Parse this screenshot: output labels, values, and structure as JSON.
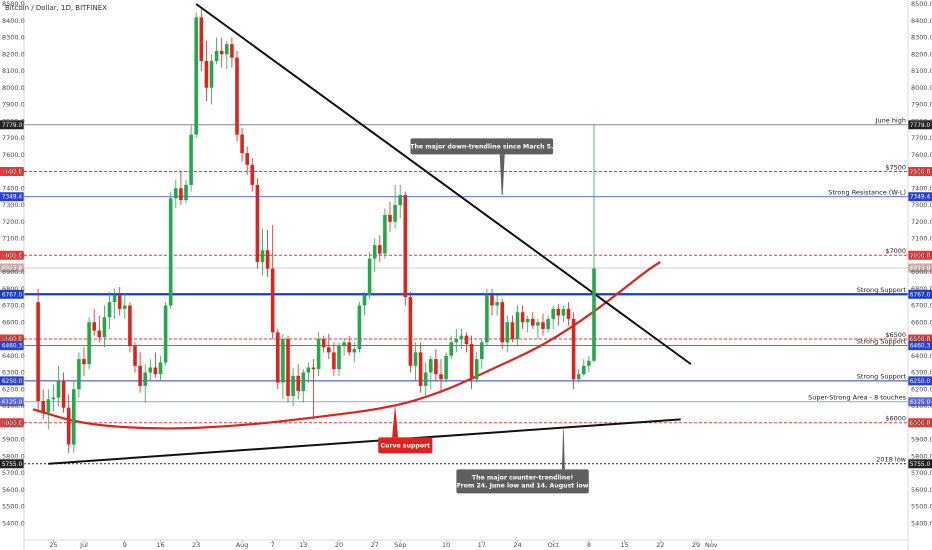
{
  "chart_data": {
    "type": "candlestick",
    "title": "Bitcoin / Dollar, 1D, BITFINEX",
    "ylim": [
      5300,
      8500
    ],
    "y_ticks": [
      5400,
      5500,
      5600,
      5700,
      5800,
      5900,
      6000,
      6100,
      6200,
      6300,
      6400,
      6500,
      6600,
      6700,
      6800,
      6900,
      7000,
      7100,
      7200,
      7300,
      7400,
      7500,
      7600,
      7700,
      7800,
      7900,
      8000,
      8100,
      8200,
      8300,
      8400,
      8500
    ],
    "x_ticks": [
      {
        "label": "25",
        "day": -6
      },
      {
        "label": "Jul",
        "day": 0
      },
      {
        "label": "9",
        "day": 8
      },
      {
        "label": "16",
        "day": 15
      },
      {
        "label": "23",
        "day": 22
      },
      {
        "label": "Aug",
        "day": 31
      },
      {
        "label": "7",
        "day": 37
      },
      {
        "label": "13",
        "day": 43
      },
      {
        "label": "20",
        "day": 50
      },
      {
        "label": "27",
        "day": 57
      },
      {
        "label": "Sep",
        "day": 62
      },
      {
        "label": "10",
        "day": 71
      },
      {
        "label": "17",
        "day": 78
      },
      {
        "label": "24",
        "day": 85
      },
      {
        "label": "Oct",
        "day": 92
      },
      {
        "label": "8",
        "day": 99
      },
      {
        "label": "15",
        "day": 106
      },
      {
        "label": "22",
        "day": 113
      },
      {
        "label": "29",
        "day": 120
      },
      {
        "label": "Nov",
        "day": 123
      }
    ],
    "candles": [
      {
        "d": -9,
        "o": 6720,
        "h": 6800,
        "l": 6060,
        "c": 6130
      },
      {
        "d": -8,
        "o": 6130,
        "h": 6200,
        "l": 6020,
        "c": 6060
      },
      {
        "d": -7,
        "o": 6060,
        "h": 6200,
        "l": 5960,
        "c": 6140
      },
      {
        "d": -6,
        "o": 6140,
        "h": 6230,
        "l": 6070,
        "c": 6150
      },
      {
        "d": -5,
        "o": 6150,
        "h": 6340,
        "l": 6100,
        "c": 6250
      },
      {
        "d": -4,
        "o": 6250,
        "h": 6300,
        "l": 6060,
        "c": 6090
      },
      {
        "d": -3,
        "o": 6090,
        "h": 6170,
        "l": 5820,
        "c": 5870
      },
      {
        "d": -2,
        "o": 5870,
        "h": 6250,
        "l": 5820,
        "c": 6200
      },
      {
        "d": -1,
        "o": 6200,
        "h": 6420,
        "l": 6150,
        "c": 6380
      },
      {
        "d": 0,
        "o": 6380,
        "h": 6450,
        "l": 6280,
        "c": 6350
      },
      {
        "d": 1,
        "o": 6350,
        "h": 6630,
        "l": 6320,
        "c": 6600
      },
      {
        "d": 2,
        "o": 6600,
        "h": 6680,
        "l": 6520,
        "c": 6550
      },
      {
        "d": 3,
        "o": 6550,
        "h": 6640,
        "l": 6480,
        "c": 6510
      },
      {
        "d": 4,
        "o": 6510,
        "h": 6700,
        "l": 6450,
        "c": 6630
      },
      {
        "d": 5,
        "o": 6630,
        "h": 6780,
        "l": 6560,
        "c": 6720
      },
      {
        "d": 6,
        "o": 6720,
        "h": 6800,
        "l": 6620,
        "c": 6760
      },
      {
        "d": 7,
        "o": 6760,
        "h": 6810,
        "l": 6640,
        "c": 6680
      },
      {
        "d": 8,
        "o": 6680,
        "h": 6770,
        "l": 6620,
        "c": 6700
      },
      {
        "d": 9,
        "o": 6700,
        "h": 6720,
        "l": 6420,
        "c": 6460
      },
      {
        "d": 10,
        "o": 6460,
        "h": 6480,
        "l": 6300,
        "c": 6340
      },
      {
        "d": 11,
        "o": 6340,
        "h": 6420,
        "l": 6180,
        "c": 6220
      },
      {
        "d": 12,
        "o": 6220,
        "h": 6350,
        "l": 6120,
        "c": 6300
      },
      {
        "d": 13,
        "o": 6300,
        "h": 6380,
        "l": 6250,
        "c": 6330
      },
      {
        "d": 14,
        "o": 6330,
        "h": 6420,
        "l": 6270,
        "c": 6290
      },
      {
        "d": 15,
        "o": 6290,
        "h": 6400,
        "l": 6250,
        "c": 6360
      },
      {
        "d": 16,
        "o": 6360,
        "h": 6720,
        "l": 6340,
        "c": 6700
      },
      {
        "d": 17,
        "o": 6700,
        "h": 7380,
        "l": 6680,
        "c": 7340
      },
      {
        "d": 18,
        "o": 7340,
        "h": 7450,
        "l": 7280,
        "c": 7400
      },
      {
        "d": 19,
        "o": 7400,
        "h": 7500,
        "l": 7300,
        "c": 7330
      },
      {
        "d": 20,
        "o": 7330,
        "h": 7450,
        "l": 7310,
        "c": 7420
      },
      {
        "d": 21,
        "o": 7420,
        "h": 7780,
        "l": 7380,
        "c": 7720
      },
      {
        "d": 22,
        "o": 7720,
        "h": 8450,
        "l": 7700,
        "c": 8420
      },
      {
        "d": 23,
        "o": 8420,
        "h": 8470,
        "l": 8100,
        "c": 8160
      },
      {
        "d": 24,
        "o": 8160,
        "h": 8280,
        "l": 7920,
        "c": 8000
      },
      {
        "d": 25,
        "o": 8000,
        "h": 8200,
        "l": 7900,
        "c": 8160
      },
      {
        "d": 26,
        "o": 8160,
        "h": 8300,
        "l": 8140,
        "c": 8220
      },
      {
        "d": 27,
        "o": 8220,
        "h": 8300,
        "l": 8120,
        "c": 8200
      },
      {
        "d": 28,
        "o": 8200,
        "h": 8280,
        "l": 8110,
        "c": 8260
      },
      {
        "d": 29,
        "o": 8260,
        "h": 8300,
        "l": 8120,
        "c": 8180
      },
      {
        "d": 30,
        "o": 8180,
        "h": 8220,
        "l": 7680,
        "c": 7720
      },
      {
        "d": 31,
        "o": 7720,
        "h": 7760,
        "l": 7560,
        "c": 7610
      },
      {
        "d": 32,
        "o": 7610,
        "h": 7650,
        "l": 7480,
        "c": 7540
      },
      {
        "d": 33,
        "o": 7540,
        "h": 7580,
        "l": 7380,
        "c": 7420
      },
      {
        "d": 34,
        "o": 7420,
        "h": 7460,
        "l": 6920,
        "c": 6960
      },
      {
        "d": 35,
        "o": 6960,
        "h": 7160,
        "l": 6880,
        "c": 7030
      },
      {
        "d": 36,
        "o": 7030,
        "h": 7150,
        "l": 6870,
        "c": 6920
      },
      {
        "d": 37,
        "o": 6920,
        "h": 7180,
        "l": 6500,
        "c": 6540
      },
      {
        "d": 38,
        "o": 6540,
        "h": 6560,
        "l": 6200,
        "c": 6240
      },
      {
        "d": 39,
        "o": 6240,
        "h": 6530,
        "l": 6140,
        "c": 6500
      },
      {
        "d": 40,
        "o": 6500,
        "h": 6520,
        "l": 6120,
        "c": 6160
      },
      {
        "d": 41,
        "o": 6160,
        "h": 6330,
        "l": 6100,
        "c": 6280
      },
      {
        "d": 42,
        "o": 6280,
        "h": 6350,
        "l": 6140,
        "c": 6190
      },
      {
        "d": 43,
        "o": 6190,
        "h": 6320,
        "l": 6120,
        "c": 6300
      },
      {
        "d": 44,
        "o": 6300,
        "h": 6360,
        "l": 6240,
        "c": 6330
      },
      {
        "d": 45,
        "o": 6330,
        "h": 6380,
        "l": 6020,
        "c": 6320
      },
      {
        "d": 46,
        "o": 6320,
        "h": 6540,
        "l": 6280,
        "c": 6500
      },
      {
        "d": 47,
        "o": 6500,
        "h": 6520,
        "l": 6420,
        "c": 6450
      },
      {
        "d": 48,
        "o": 6450,
        "h": 6530,
        "l": 6380,
        "c": 6420
      },
      {
        "d": 49,
        "o": 6420,
        "h": 6480,
        "l": 6280,
        "c": 6320
      },
      {
        "d": 50,
        "o": 6320,
        "h": 6480,
        "l": 6280,
        "c": 6460
      },
      {
        "d": 51,
        "o": 6460,
        "h": 6500,
        "l": 6400,
        "c": 6480
      },
      {
        "d": 52,
        "o": 6480,
        "h": 6520,
        "l": 6400,
        "c": 6420
      },
      {
        "d": 53,
        "o": 6420,
        "h": 6480,
        "l": 6360,
        "c": 6440
      },
      {
        "d": 54,
        "o": 6440,
        "h": 6720,
        "l": 6420,
        "c": 6700
      },
      {
        "d": 55,
        "o": 6700,
        "h": 6780,
        "l": 6640,
        "c": 6760
      },
      {
        "d": 56,
        "o": 6760,
        "h": 7020,
        "l": 6740,
        "c": 6980
      },
      {
        "d": 57,
        "o": 6980,
        "h": 7100,
        "l": 6900,
        "c": 7060
      },
      {
        "d": 58,
        "o": 7060,
        "h": 7120,
        "l": 6960,
        "c": 7010
      },
      {
        "d": 59,
        "o": 7010,
        "h": 7280,
        "l": 6980,
        "c": 7240
      },
      {
        "d": 60,
        "o": 7240,
        "h": 7320,
        "l": 7140,
        "c": 7200
      },
      {
        "d": 61,
        "o": 7200,
        "h": 7420,
        "l": 7160,
        "c": 7300
      },
      {
        "d": 62,
        "o": 7300,
        "h": 7420,
        "l": 7220,
        "c": 7360
      },
      {
        "d": 63,
        "o": 7360,
        "h": 7380,
        "l": 6700,
        "c": 6750
      },
      {
        "d": 64,
        "o": 6750,
        "h": 6780,
        "l": 6300,
        "c": 6340
      },
      {
        "d": 65,
        "o": 6340,
        "h": 6480,
        "l": 6250,
        "c": 6420
      },
      {
        "d": 66,
        "o": 6420,
        "h": 6480,
        "l": 6180,
        "c": 6220
      },
      {
        "d": 67,
        "o": 6220,
        "h": 6360,
        "l": 6150,
        "c": 6300
      },
      {
        "d": 68,
        "o": 6300,
        "h": 6400,
        "l": 6200,
        "c": 6380
      },
      {
        "d": 69,
        "o": 6380,
        "h": 6440,
        "l": 6250,
        "c": 6290
      },
      {
        "d": 70,
        "o": 6290,
        "h": 6380,
        "l": 6180,
        "c": 6260
      },
      {
        "d": 71,
        "o": 6260,
        "h": 6420,
        "l": 6240,
        "c": 6400
      },
      {
        "d": 72,
        "o": 6400,
        "h": 6520,
        "l": 6380,
        "c": 6480
      },
      {
        "d": 73,
        "o": 6480,
        "h": 6560,
        "l": 6420,
        "c": 6500
      },
      {
        "d": 74,
        "o": 6500,
        "h": 6560,
        "l": 6440,
        "c": 6520
      },
      {
        "d": 75,
        "o": 6520,
        "h": 6540,
        "l": 6420,
        "c": 6470
      },
      {
        "d": 76,
        "o": 6470,
        "h": 6520,
        "l": 6200,
        "c": 6260
      },
      {
        "d": 77,
        "o": 6260,
        "h": 6420,
        "l": 6240,
        "c": 6380
      },
      {
        "d": 78,
        "o": 6380,
        "h": 6500,
        "l": 6320,
        "c": 6480
      },
      {
        "d": 79,
        "o": 6480,
        "h": 6800,
        "l": 6460,
        "c": 6760
      },
      {
        "d": 80,
        "o": 6760,
        "h": 6800,
        "l": 6640,
        "c": 6700
      },
      {
        "d": 81,
        "o": 6700,
        "h": 6760,
        "l": 6640,
        "c": 6720
      },
      {
        "d": 82,
        "o": 6720,
        "h": 6740,
        "l": 6440,
        "c": 6480
      },
      {
        "d": 83,
        "o": 6480,
        "h": 6640,
        "l": 6420,
        "c": 6600
      },
      {
        "d": 84,
        "o": 6600,
        "h": 6640,
        "l": 6480,
        "c": 6500
      },
      {
        "d": 85,
        "o": 6500,
        "h": 6700,
        "l": 6460,
        "c": 6660
      },
      {
        "d": 86,
        "o": 6660,
        "h": 6700,
        "l": 6560,
        "c": 6600
      },
      {
        "d": 87,
        "o": 6600,
        "h": 6640,
        "l": 6540,
        "c": 6620
      },
      {
        "d": 88,
        "o": 6620,
        "h": 6660,
        "l": 6560,
        "c": 6580
      },
      {
        "d": 89,
        "o": 6580,
        "h": 6620,
        "l": 6500,
        "c": 6600
      },
      {
        "d": 90,
        "o": 6600,
        "h": 6650,
        "l": 6520,
        "c": 6560
      },
      {
        "d": 91,
        "o": 6560,
        "h": 6640,
        "l": 6540,
        "c": 6620
      },
      {
        "d": 92,
        "o": 6620,
        "h": 6700,
        "l": 6560,
        "c": 6680
      },
      {
        "d": 93,
        "o": 6680,
        "h": 6710,
        "l": 6580,
        "c": 6640
      },
      {
        "d": 94,
        "o": 6640,
        "h": 6700,
        "l": 6600,
        "c": 6680
      },
      {
        "d": 95,
        "o": 6680,
        "h": 6720,
        "l": 6580,
        "c": 6620
      },
      {
        "d": 96,
        "o": 6620,
        "h": 6660,
        "l": 6200,
        "c": 6260
      },
      {
        "d": 97,
        "o": 6260,
        "h": 6320,
        "l": 6240,
        "c": 6290
      },
      {
        "d": 98,
        "o": 6290,
        "h": 6380,
        "l": 6280,
        "c": 6340
      },
      {
        "d": 99,
        "o": 6340,
        "h": 6400,
        "l": 6300,
        "c": 6370
      },
      {
        "d": 100,
        "o": 6370,
        "h": 7780,
        "l": 6360,
        "c": 6920
      }
    ],
    "levels": [
      {
        "value": 7779,
        "label": "June high",
        "tag": "7779.0",
        "color": "#888888",
        "dash": "",
        "width": 1
      },
      {
        "value": 7500,
        "label": "$7500",
        "tag": "7500.0",
        "color": "#e53935",
        "dash": "3,2",
        "width": 1
      },
      {
        "value": 7349.4,
        "label": "Strong Resistance (W-L)",
        "tag": "7349.4",
        "color": "#2a3fd4",
        "dash": "",
        "width": 0.8
      },
      {
        "value": 7000,
        "label": "$7000",
        "tag": "7000.0",
        "color": "#e53935",
        "dash": "3,2",
        "width": 1
      },
      {
        "value": 6923.8,
        "label": "",
        "tag": "6923.8",
        "color": "#bbbbbb",
        "dash": "",
        "width": 0.8
      },
      {
        "value": 6767,
        "label": "Strong Support",
        "tag": "6767.0",
        "color": "#1a3ad4",
        "dash": "",
        "width": 2.2
      },
      {
        "value": 6500,
        "label": "$6500",
        "tag": "6500.0",
        "color": "#e53935",
        "dash": "3,2",
        "width": 1
      },
      {
        "value": 6460.3,
        "label": "Strong Support",
        "tag": "6460.3",
        "color": "#2a3fd4",
        "dash": "",
        "width": 0.8
      },
      {
        "value": 6250,
        "label": "Strong Support",
        "tag": "6250.0",
        "color": "#2a3fd4",
        "dash": "",
        "width": 1
      },
      {
        "value": 6125,
        "label": "Super-Strong Area - 8 touches",
        "tag": "6125.0",
        "color": "#5a6ad8",
        "dash": "",
        "width": 0.7
      },
      {
        "value": 6000,
        "label": "$6000",
        "tag": "6000.0",
        "color": "#e53935",
        "dash": "3,2",
        "width": 1
      },
      {
        "value": 5755,
        "label": "2018 low",
        "tag": "5755.0",
        "color": "#222222",
        "dash": "2,2",
        "width": 1
      }
    ],
    "trendlines": [
      {
        "name": "The major down-trendline since March 5.",
        "from": [
          22,
          8500
        ],
        "to": [
          119,
          6350
        ]
      },
      {
        "name": "The major counter-trendline",
        "from": [
          -7,
          5755
        ],
        "to": [
          117,
          6020
        ]
      }
    ],
    "curve_support_points": [
      [
        -10,
        6080
      ],
      [
        0,
        5990
      ],
      [
        15,
        5960
      ],
      [
        30,
        5980
      ],
      [
        45,
        6030
      ],
      [
        60,
        6090
      ],
      [
        70,
        6180
      ],
      [
        80,
        6320
      ],
      [
        90,
        6460
      ],
      [
        100,
        6660
      ],
      [
        110,
        6900
      ],
      [
        113,
        6960
      ]
    ],
    "annotations": [
      {
        "text": "The major down-trendline since March 5.",
        "box_day": 78,
        "box_price": 7650
      },
      {
        "text": "Curve support",
        "box_day": 63,
        "box_price": 5865
      },
      {
        "text": "The major counter-trendline!",
        "text2": "From 24. June low and 14. August low",
        "box_day": 86,
        "box_price": 5650
      }
    ],
    "colors": {
      "up": "#23a84a",
      "down": "#e0221d",
      "curve": "#e0221d",
      "trend": "#111111",
      "label_bg": "#5f5f5f"
    }
  }
}
